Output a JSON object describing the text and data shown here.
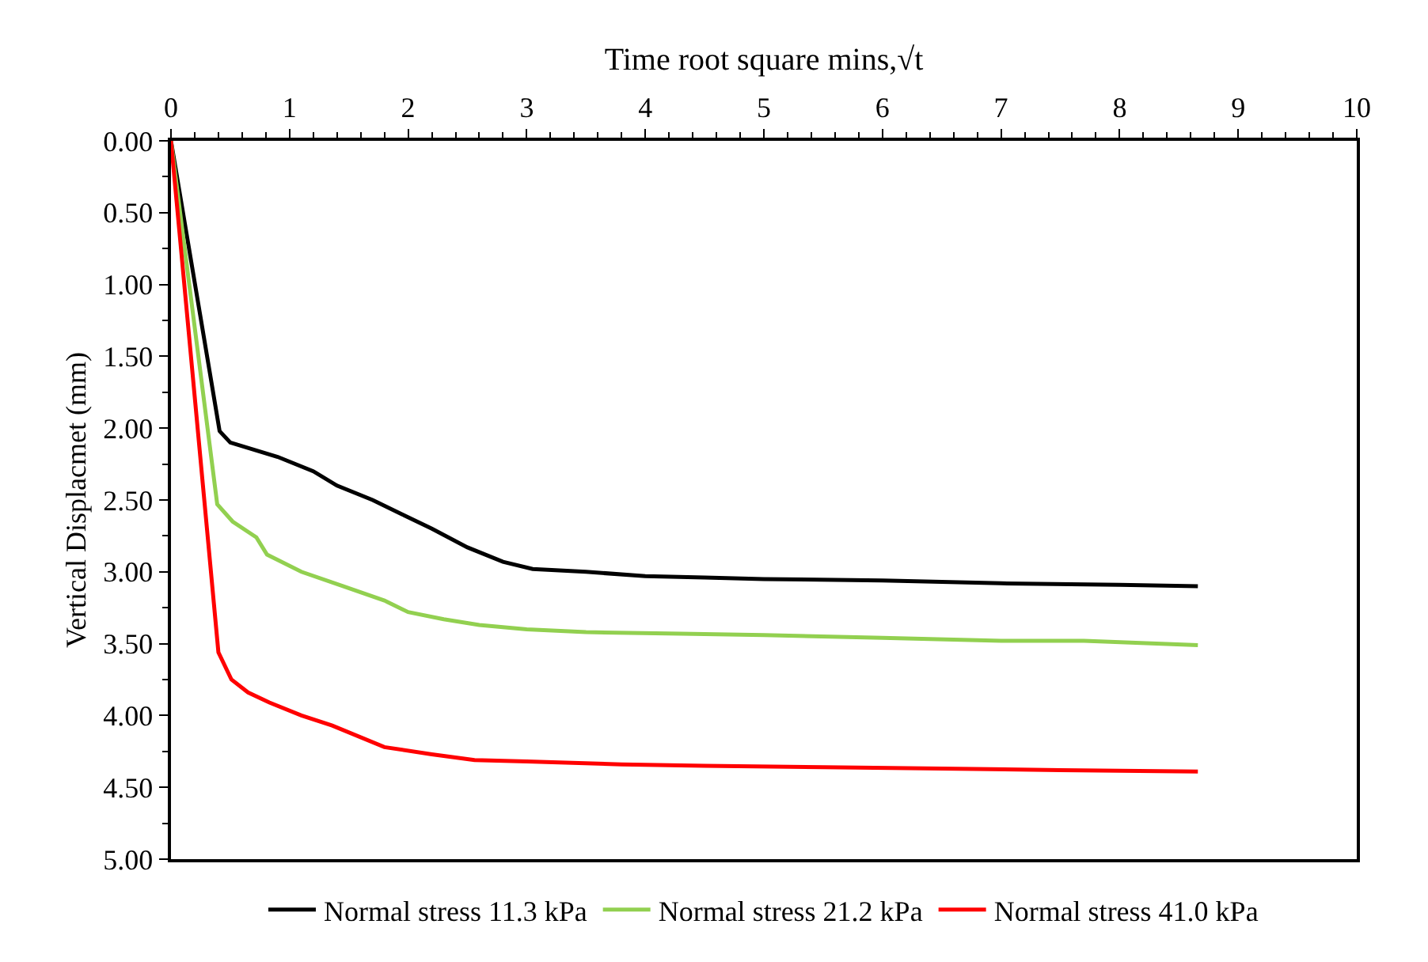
{
  "chart_data": {
    "type": "line",
    "xlabel": "Time root square mins,√t",
    "ylabel": "Vertical Displacmet (mm)",
    "xlim": [
      0,
      10
    ],
    "xticks": [
      0,
      1,
      2,
      3,
      4,
      5,
      6,
      7,
      8,
      9,
      10
    ],
    "ylim": [
      5,
      0
    ],
    "yticks": [
      {
        "value": 0,
        "label": "0.00"
      },
      {
        "value": 0.5,
        "label": "0.50"
      },
      {
        "value": 1,
        "label": "1.00"
      },
      {
        "value": 1.5,
        "label": "1.50"
      },
      {
        "value": 2,
        "label": "2.00"
      },
      {
        "value": 2.5,
        "label": "2.50"
      },
      {
        "value": 3,
        "label": "3.00"
      },
      {
        "value": 3.5,
        "label": "3.50"
      },
      {
        "value": 4,
        "label": "4.00"
      },
      {
        "value": 4.5,
        "label": "4.50"
      },
      {
        "value": 5,
        "label": "5.00"
      }
    ],
    "legend": "bottom",
    "marker": "none",
    "line_style": "solid",
    "series": [
      {
        "name": "Normal stress 11.3 kPa",
        "color": "#000000",
        "x": [
          0,
          0.41,
          0.5,
          0.9,
          1.2,
          1.4,
          1.7,
          1.95,
          2.2,
          2.5,
          2.8,
          3.05,
          3.5,
          4.0,
          4.5,
          5.0,
          6.0,
          7.0,
          8.0,
          8.66
        ],
        "values": [
          0,
          2.02,
          2.1,
          2.2,
          2.3,
          2.4,
          2.5,
          2.6,
          2.7,
          2.83,
          2.93,
          2.98,
          3.0,
          3.03,
          3.04,
          3.05,
          3.06,
          3.08,
          3.09,
          3.1
        ]
      },
      {
        "name": "Normal stress 21.2 kPa",
        "color": "#92d050",
        "x": [
          0,
          0.39,
          0.52,
          0.72,
          0.81,
          1.1,
          1.45,
          1.8,
          2.0,
          2.3,
          2.6,
          3.0,
          3.5,
          4.3,
          5.0,
          6.0,
          7.0,
          7.7,
          8.66
        ],
        "values": [
          0,
          2.53,
          2.65,
          2.76,
          2.88,
          3.0,
          3.1,
          3.2,
          3.28,
          3.33,
          3.37,
          3.4,
          3.42,
          3.43,
          3.44,
          3.46,
          3.48,
          3.48,
          3.51
        ]
      },
      {
        "name": "Normal stress 41.0 kPa",
        "color": "#ff0000",
        "x": [
          0,
          0.4,
          0.51,
          0.65,
          0.83,
          1.1,
          1.36,
          1.8,
          2.2,
          2.56,
          3.0,
          3.8,
          4.5,
          5.5,
          6.5,
          7.5,
          8.66
        ],
        "values": [
          0,
          3.56,
          3.75,
          3.84,
          3.91,
          4.0,
          4.07,
          4.22,
          4.27,
          4.31,
          4.32,
          4.34,
          4.35,
          4.36,
          4.37,
          4.38,
          4.39
        ]
      }
    ]
  }
}
